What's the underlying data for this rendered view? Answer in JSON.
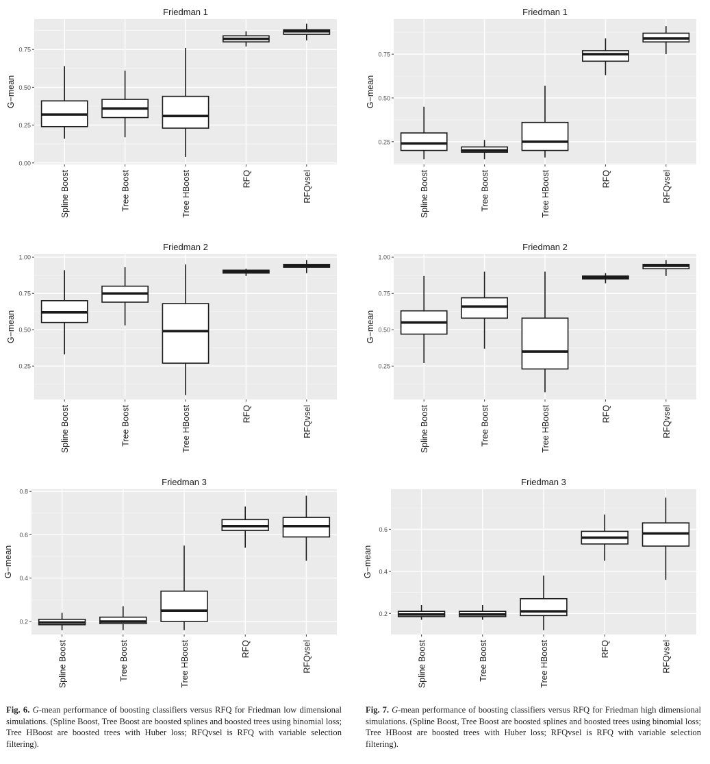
{
  "colors": {
    "panel_bg": "#ebebeb",
    "grid_major": "#ffffff",
    "box_fill": "#ffffff",
    "box_stroke": "#1a1a1a"
  },
  "chart_data": [
    {
      "type": "box",
      "title": "Friedman 1",
      "ylabel": "G−mean",
      "categories": [
        "Spline Boost",
        "Tree Boost",
        "Tree HBoost",
        "RFQ",
        "RFQvsel"
      ],
      "ylim": [
        -0.01,
        0.95
      ],
      "yticks": [
        0.0,
        0.25,
        0.5,
        0.75
      ],
      "ytick_labels": [
        "0.00",
        "0.25",
        "0.50",
        "0.75"
      ],
      "boxes": [
        {
          "min": 0.16,
          "q1": 0.24,
          "median": 0.32,
          "q3": 0.41,
          "max": 0.64
        },
        {
          "min": 0.17,
          "q1": 0.3,
          "median": 0.36,
          "q3": 0.42,
          "max": 0.61
        },
        {
          "min": 0.04,
          "q1": 0.23,
          "median": 0.31,
          "q3": 0.44,
          "max": 0.76
        },
        {
          "min": 0.77,
          "q1": 0.8,
          "median": 0.82,
          "q3": 0.84,
          "max": 0.87
        },
        {
          "min": 0.81,
          "q1": 0.85,
          "median": 0.87,
          "q3": 0.88,
          "max": 0.92
        }
      ]
    },
    {
      "type": "box",
      "title": "Friedman 1",
      "ylabel": "G−mean",
      "categories": [
        "Spline Boost",
        "Tree Boost",
        "Tree HBoost",
        "RFQ",
        "RFQvsel"
      ],
      "ylim": [
        0.12,
        0.95
      ],
      "yticks": [
        0.25,
        0.5,
        0.75
      ],
      "ytick_labels": [
        "0.25",
        "0.50",
        "0.75"
      ],
      "boxes": [
        {
          "min": 0.15,
          "q1": 0.2,
          "median": 0.24,
          "q3": 0.3,
          "max": 0.45
        },
        {
          "min": 0.15,
          "q1": 0.19,
          "median": 0.2,
          "q3": 0.22,
          "max": 0.26
        },
        {
          "min": 0.16,
          "q1": 0.2,
          "median": 0.25,
          "q3": 0.36,
          "max": 0.57
        },
        {
          "min": 0.63,
          "q1": 0.71,
          "median": 0.75,
          "q3": 0.77,
          "max": 0.84
        },
        {
          "min": 0.75,
          "q1": 0.82,
          "median": 0.84,
          "q3": 0.87,
          "max": 0.91
        }
      ]
    },
    {
      "type": "box",
      "title": "Friedman 2",
      "ylabel": "G−mean",
      "categories": [
        "Spline Boost",
        "Tree Boost",
        "Tree HBoost",
        "RFQ",
        "RFQvsel"
      ],
      "ylim": [
        0.02,
        1.02
      ],
      "yticks": [
        0.25,
        0.5,
        0.75,
        1.0
      ],
      "ytick_labels": [
        "0.25",
        "0.50",
        "0.75",
        "1.00"
      ],
      "boxes": [
        {
          "min": 0.33,
          "q1": 0.55,
          "median": 0.62,
          "q3": 0.7,
          "max": 0.91
        },
        {
          "min": 0.53,
          "q1": 0.69,
          "median": 0.75,
          "q3": 0.8,
          "max": 0.93
        },
        {
          "min": 0.05,
          "q1": 0.27,
          "median": 0.49,
          "q3": 0.68,
          "max": 0.95
        },
        {
          "min": 0.87,
          "q1": 0.89,
          "median": 0.9,
          "q3": 0.91,
          "max": 0.92
        },
        {
          "min": 0.89,
          "q1": 0.93,
          "median": 0.94,
          "q3": 0.95,
          "max": 0.98
        }
      ]
    },
    {
      "type": "box",
      "title": "Friedman 2",
      "ylabel": "G−mean",
      "categories": [
        "Spline Boost",
        "Tree Boost",
        "Tree HBoost",
        "RFQ",
        "RFQvsel"
      ],
      "ylim": [
        0.02,
        1.02
      ],
      "yticks": [
        0.25,
        0.5,
        0.75,
        1.0
      ],
      "ytick_labels": [
        "0.25",
        "0.50",
        "0.75",
        "1.00"
      ],
      "boxes": [
        {
          "min": 0.27,
          "q1": 0.47,
          "median": 0.55,
          "q3": 0.63,
          "max": 0.87
        },
        {
          "min": 0.37,
          "q1": 0.58,
          "median": 0.66,
          "q3": 0.72,
          "max": 0.9
        },
        {
          "min": 0.07,
          "q1": 0.23,
          "median": 0.35,
          "q3": 0.58,
          "max": 0.9
        },
        {
          "min": 0.82,
          "q1": 0.85,
          "median": 0.86,
          "q3": 0.87,
          "max": 0.89
        },
        {
          "min": 0.87,
          "q1": 0.92,
          "median": 0.94,
          "q3": 0.95,
          "max": 0.98
        }
      ]
    },
    {
      "type": "box",
      "title": "Friedman 3",
      "ylabel": "G−mean",
      "categories": [
        "Spline Boost",
        "Tree Boost",
        "Tree HBoost",
        "RFQ",
        "RFQvsel"
      ],
      "ylim": [
        0.14,
        0.81
      ],
      "yticks": [
        0.2,
        0.4,
        0.6,
        0.8
      ],
      "ytick_labels": [
        "0.2",
        "0.4",
        "0.6",
        "0.8"
      ],
      "boxes": [
        {
          "min": 0.16,
          "q1": 0.185,
          "median": 0.195,
          "q3": 0.21,
          "max": 0.24
        },
        {
          "min": 0.16,
          "q1": 0.19,
          "median": 0.2,
          "q3": 0.22,
          "max": 0.27
        },
        {
          "min": 0.16,
          "q1": 0.2,
          "median": 0.25,
          "q3": 0.34,
          "max": 0.55
        },
        {
          "min": 0.54,
          "q1": 0.62,
          "median": 0.64,
          "q3": 0.67,
          "max": 0.73
        },
        {
          "min": 0.48,
          "q1": 0.59,
          "median": 0.64,
          "q3": 0.68,
          "max": 0.78
        }
      ]
    },
    {
      "type": "box",
      "title": "Friedman 3",
      "ylabel": "G−mean",
      "categories": [
        "Spline Boost",
        "Tree Boost",
        "Tree HBoost",
        "RFQ",
        "RFQvsel"
      ],
      "ylim": [
        0.1,
        0.79
      ],
      "yticks": [
        0.2,
        0.4,
        0.6
      ],
      "ytick_labels": [
        "0.2",
        "0.4",
        "0.6"
      ],
      "boxes": [
        {
          "min": 0.17,
          "q1": 0.185,
          "median": 0.195,
          "q3": 0.21,
          "max": 0.24
        },
        {
          "min": 0.17,
          "q1": 0.185,
          "median": 0.195,
          "q3": 0.21,
          "max": 0.24
        },
        {
          "min": 0.12,
          "q1": 0.19,
          "median": 0.21,
          "q3": 0.27,
          "max": 0.38
        },
        {
          "min": 0.45,
          "q1": 0.53,
          "median": 0.56,
          "q3": 0.59,
          "max": 0.67
        },
        {
          "min": 0.36,
          "q1": 0.52,
          "median": 0.58,
          "q3": 0.63,
          "max": 0.75
        }
      ]
    }
  ],
  "captions": [
    {
      "fig_label": "Fig. 6.",
      "gmean_word": "G",
      "text": "-mean performance of boosting classifiers versus RFQ for Friedman low dimensional simulations. (Spline Boost, Tree Boost are boosted splines and boosted trees using binomial loss; Tree HBoost are boosted trees with Huber loss; RFQvsel is RFQ with variable selection filtering)."
    },
    {
      "fig_label": "Fig. 7.",
      "gmean_word": "G",
      "text": "-mean performance of boosting classifiers versus RFQ for Friedman high dimensional simulations. (Spline Boost, Tree Boost are boosted splines and boosted trees using binomial loss; Tree HBoost are boosted trees with Huber loss; RFQvsel is RFQ with variable selection filtering)."
    }
  ]
}
